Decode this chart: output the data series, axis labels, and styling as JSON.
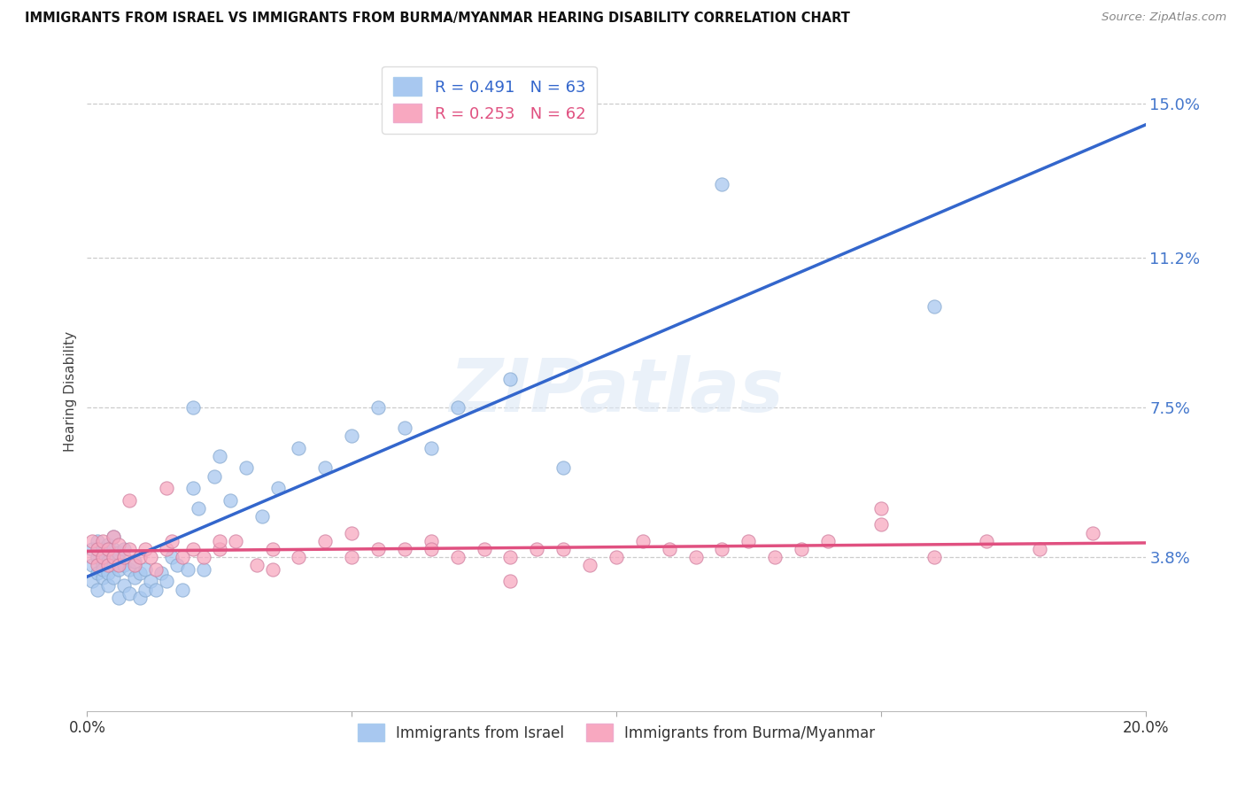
{
  "title": "IMMIGRANTS FROM ISRAEL VS IMMIGRANTS FROM BURMA/MYANMAR HEARING DISABILITY CORRELATION CHART",
  "source": "Source: ZipAtlas.com",
  "ylabel": "Hearing Disability",
  "xlim": [
    0.0,
    0.2
  ],
  "ylim": [
    0.0,
    0.158
  ],
  "yticks": [
    0.038,
    0.075,
    0.112,
    0.15
  ],
  "ytick_labels": [
    "3.8%",
    "7.5%",
    "11.2%",
    "15.0%"
  ],
  "legend_labels_bottom": [
    "Immigrants from Israel",
    "Immigrants from Burma/Myanmar"
  ],
  "color_israel": "#a8c8f0",
  "color_burma": "#f8a8c0",
  "color_trend_israel": "#3366cc",
  "color_trend_burma": "#e05080",
  "watermark": "ZIPatlas",
  "R_israel": 0.491,
  "N_israel": 63,
  "R_burma": 0.253,
  "N_burma": 62,
  "israel_x": [
    0.001,
    0.001,
    0.001,
    0.002,
    0.002,
    0.002,
    0.002,
    0.003,
    0.003,
    0.003,
    0.003,
    0.003,
    0.004,
    0.004,
    0.004,
    0.004,
    0.005,
    0.005,
    0.005,
    0.005,
    0.006,
    0.006,
    0.006,
    0.007,
    0.007,
    0.007,
    0.008,
    0.008,
    0.009,
    0.009,
    0.01,
    0.01,
    0.011,
    0.011,
    0.012,
    0.013,
    0.014,
    0.015,
    0.016,
    0.017,
    0.018,
    0.019,
    0.02,
    0.021,
    0.022,
    0.024,
    0.025,
    0.027,
    0.03,
    0.033,
    0.036,
    0.04,
    0.045,
    0.05,
    0.055,
    0.06,
    0.065,
    0.07,
    0.08,
    0.09,
    0.02,
    0.12,
    0.16
  ],
  "israel_y": [
    0.036,
    0.032,
    0.04,
    0.038,
    0.034,
    0.03,
    0.042,
    0.036,
    0.04,
    0.033,
    0.035,
    0.038,
    0.034,
    0.037,
    0.031,
    0.041,
    0.036,
    0.04,
    0.033,
    0.043,
    0.035,
    0.039,
    0.028,
    0.036,
    0.031,
    0.04,
    0.035,
    0.029,
    0.033,
    0.037,
    0.034,
    0.028,
    0.03,
    0.035,
    0.032,
    0.03,
    0.034,
    0.032,
    0.038,
    0.036,
    0.03,
    0.035,
    0.055,
    0.05,
    0.035,
    0.058,
    0.063,
    0.052,
    0.06,
    0.048,
    0.055,
    0.065,
    0.06,
    0.068,
    0.075,
    0.07,
    0.065,
    0.075,
    0.082,
    0.06,
    0.075,
    0.13,
    0.1
  ],
  "burma_x": [
    0.001,
    0.001,
    0.002,
    0.002,
    0.003,
    0.003,
    0.004,
    0.004,
    0.005,
    0.005,
    0.006,
    0.006,
    0.007,
    0.008,
    0.009,
    0.01,
    0.011,
    0.012,
    0.013,
    0.015,
    0.016,
    0.018,
    0.02,
    0.022,
    0.025,
    0.028,
    0.032,
    0.035,
    0.04,
    0.045,
    0.05,
    0.055,
    0.06,
    0.065,
    0.07,
    0.075,
    0.08,
    0.085,
    0.09,
    0.095,
    0.1,
    0.105,
    0.11,
    0.115,
    0.12,
    0.125,
    0.13,
    0.135,
    0.14,
    0.15,
    0.16,
    0.17,
    0.18,
    0.19,
    0.008,
    0.015,
    0.025,
    0.035,
    0.05,
    0.065,
    0.15,
    0.08
  ],
  "burma_y": [
    0.038,
    0.042,
    0.036,
    0.04,
    0.038,
    0.042,
    0.036,
    0.04,
    0.038,
    0.043,
    0.036,
    0.041,
    0.038,
    0.04,
    0.036,
    0.038,
    0.04,
    0.038,
    0.035,
    0.04,
    0.042,
    0.038,
    0.04,
    0.038,
    0.04,
    0.042,
    0.036,
    0.04,
    0.038,
    0.042,
    0.038,
    0.04,
    0.04,
    0.042,
    0.038,
    0.04,
    0.038,
    0.04,
    0.04,
    0.036,
    0.038,
    0.042,
    0.04,
    0.038,
    0.04,
    0.042,
    0.038,
    0.04,
    0.042,
    0.046,
    0.038,
    0.042,
    0.04,
    0.044,
    0.052,
    0.055,
    0.042,
    0.035,
    0.044,
    0.04,
    0.05,
    0.032
  ]
}
